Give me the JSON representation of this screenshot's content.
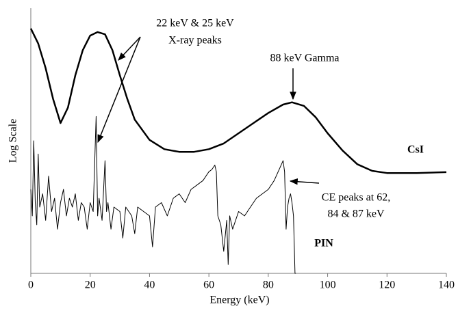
{
  "chart_data": {
    "type": "line",
    "x_label": "Energy (keV)",
    "y_label": "Log Scale",
    "log_scale": true,
    "xlim": [
      0,
      140
    ],
    "xticks": [
      0,
      20,
      40,
      60,
      80,
      100,
      120,
      140
    ],
    "ylim": [
      0,
      6
    ],
    "series": [
      {
        "name": "CsI",
        "color": "#000000",
        "x": [
          0,
          2.5,
          5,
          7.5,
          10,
          12.5,
          15,
          17.5,
          20,
          22.5,
          25,
          27.5,
          30,
          32.5,
          35,
          40,
          45,
          50,
          55,
          60,
          65,
          70,
          75,
          80,
          85,
          88,
          92,
          96,
          100,
          105,
          110,
          115,
          120,
          130,
          140
        ],
        "values": [
          5.54,
          5.2,
          4.64,
          3.95,
          3.4,
          3.75,
          4.48,
          5.05,
          5.38,
          5.46,
          5.41,
          5.05,
          4.48,
          3.95,
          3.48,
          3.02,
          2.81,
          2.75,
          2.75,
          2.81,
          2.94,
          3.17,
          3.4,
          3.63,
          3.82,
          3.87,
          3.79,
          3.53,
          3.17,
          2.78,
          2.47,
          2.32,
          2.27,
          2.27,
          2.29
        ]
      },
      {
        "name": "PIN",
        "color": "#000000",
        "x": [
          0,
          0.5,
          1,
          1.5,
          2,
          2.5,
          3,
          4,
          5,
          6,
          7,
          8,
          9,
          10,
          11,
          12,
          13,
          14,
          15,
          16,
          17,
          18,
          19,
          20,
          21,
          22,
          22.5,
          23,
          24,
          25,
          25.5,
          26,
          27,
          28,
          30,
          31,
          32,
          34,
          35,
          36,
          38,
          40,
          41,
          42,
          44,
          46,
          48,
          50,
          52,
          54,
          56,
          58,
          60,
          61,
          62,
          62.5,
          63,
          64,
          65,
          66,
          66.5,
          67,
          68,
          70,
          72,
          74,
          76,
          78,
          80,
          82,
          84,
          85,
          85.5,
          86,
          86.5,
          87,
          87.5,
          88,
          88.5,
          89,
          89.3
        ],
        "values": [
          1.9,
          1.3,
          3.0,
          1.6,
          1.1,
          2.7,
          1.5,
          1.8,
          1.2,
          2.2,
          1.4,
          1.7,
          1.0,
          1.6,
          1.9,
          1.3,
          1.7,
          1.5,
          1.8,
          1.2,
          1.6,
          1.5,
          1.0,
          1.6,
          1.4,
          3.55,
          1.3,
          1.7,
          1.2,
          2.55,
          1.4,
          1.6,
          1.0,
          1.5,
          1.4,
          0.8,
          1.5,
          1.3,
          0.9,
          1.5,
          1.4,
          1.3,
          0.6,
          1.5,
          1.6,
          1.3,
          1.7,
          1.8,
          1.6,
          1.9,
          2.0,
          2.1,
          2.3,
          2.35,
          2.45,
          2.3,
          1.3,
          1.1,
          0.5,
          1.2,
          0.2,
          1.3,
          1.0,
          1.4,
          1.3,
          1.5,
          1.7,
          1.8,
          1.9,
          2.1,
          2.4,
          2.55,
          2.3,
          1.0,
          1.5,
          1.7,
          1.8,
          1.6,
          1.3,
          0,
          0
        ]
      }
    ],
    "annotations": [
      "22 keV & 25 keV",
      "X-ray peaks",
      "88 keV Gamma",
      "CsI",
      "PIN",
      "CE peaks at 62,",
      "84 & 87 keV"
    ]
  }
}
